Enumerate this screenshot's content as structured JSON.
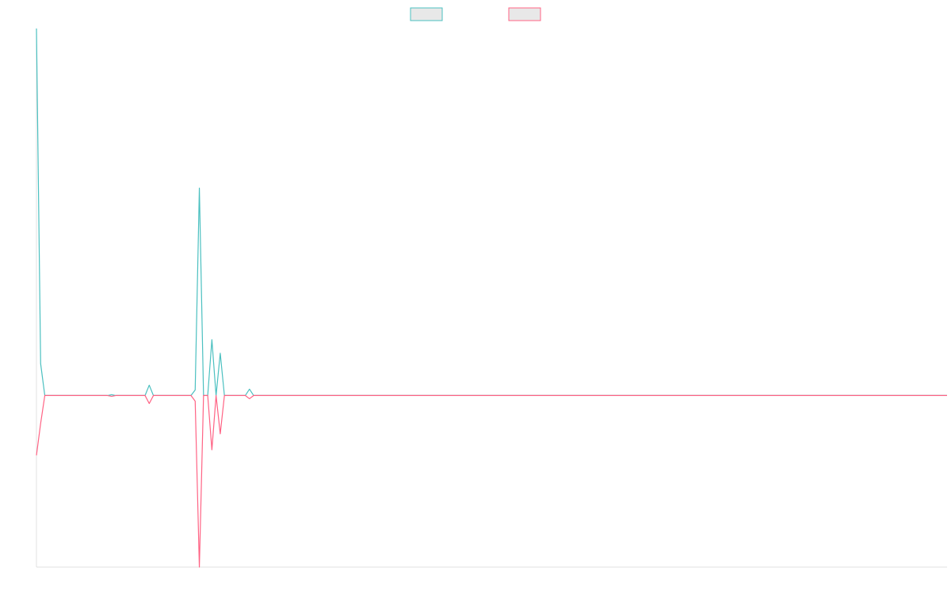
{
  "chart_data": {
    "type": "line",
    "title": "",
    "xlabel": "",
    "ylabel": "",
    "grid": false,
    "legend_placement": "top-center",
    "series": [
      {
        "name": "",
        "color": "#4bc0c0",
        "fill": "#e8e8e8",
        "values": [
          4.6,
          0.4,
          0,
          0,
          0,
          0,
          0,
          0,
          0,
          0,
          0,
          0,
          0,
          0,
          0,
          0,
          0,
          0,
          0.01,
          0,
          0,
          0,
          0,
          0,
          0,
          0,
          0,
          0.13,
          0,
          0,
          0,
          0,
          0,
          0,
          0,
          0,
          0,
          0,
          0.07,
          2.6,
          0,
          0,
          0.7,
          0,
          0.53,
          0,
          0,
          0,
          0,
          0,
          0,
          0.08,
          0,
          0,
          0,
          0,
          0,
          0,
          0,
          0,
          0,
          0,
          0,
          0,
          0,
          0,
          0,
          0,
          0,
          0,
          0,
          0,
          0,
          0,
          0,
          0,
          0,
          0,
          0,
          0,
          0,
          0,
          0,
          0,
          0,
          0,
          0,
          0,
          0,
          0,
          0,
          0,
          0,
          0,
          0,
          0,
          0,
          0,
          0,
          0,
          0,
          0,
          0,
          0,
          0,
          0,
          0,
          0,
          0,
          0,
          0,
          0,
          0,
          0,
          0,
          0,
          0,
          0,
          0,
          0,
          0,
          0,
          0,
          0,
          0,
          0,
          0,
          0,
          0,
          0,
          0,
          0,
          0,
          0,
          0,
          0,
          0,
          0,
          0,
          0,
          0,
          0,
          0,
          0,
          0,
          0,
          0,
          0,
          0,
          0,
          0,
          0,
          0,
          0,
          0,
          0,
          0,
          0,
          0,
          0,
          0,
          0,
          0,
          0,
          0,
          0,
          0,
          0,
          0,
          0,
          0,
          0,
          0,
          0,
          0,
          0,
          0,
          0,
          0,
          0,
          0,
          0,
          0,
          0,
          0,
          0,
          0,
          0,
          0,
          0,
          0,
          0,
          0,
          0,
          0,
          0,
          0,
          0,
          0,
          0,
          0,
          0,
          0,
          0,
          0,
          0,
          0,
          0,
          0,
          0,
          0,
          0,
          0,
          0,
          0,
          0,
          0,
          0,
          0
        ]
      },
      {
        "name": "",
        "color": "#ff6384",
        "fill": "#e8e8e8",
        "values": [
          -0.75,
          -0.35,
          0,
          0,
          0,
          0,
          0,
          0,
          0,
          0,
          0,
          0,
          0,
          0,
          0,
          0,
          0,
          0,
          -0.01,
          0,
          0,
          0,
          0,
          0,
          0,
          0,
          0,
          -0.1,
          0,
          0,
          0,
          0,
          0,
          0,
          0,
          0,
          0,
          0,
          -0.07,
          -2.15,
          0,
          0,
          -0.68,
          0,
          -0.48,
          0,
          0,
          0,
          0,
          0,
          0,
          -0.04,
          0,
          0,
          0,
          0,
          0,
          0,
          0,
          0,
          0,
          0,
          0,
          0,
          0,
          0,
          0,
          0,
          0,
          0,
          0,
          0,
          0,
          0,
          0,
          0,
          0,
          0,
          0,
          0,
          0,
          0,
          0,
          0,
          0,
          0,
          0,
          0,
          0,
          0,
          0,
          0,
          0,
          0,
          0,
          0,
          0,
          0,
          0,
          0,
          0,
          0,
          0,
          0,
          0,
          0,
          0,
          0,
          0,
          0,
          0,
          0,
          0,
          0,
          0,
          0,
          0,
          0,
          0,
          0,
          0,
          0,
          0,
          0,
          0,
          0,
          0,
          0,
          0,
          0,
          0,
          0,
          0,
          0,
          0,
          0,
          0,
          0,
          0,
          0,
          0,
          0,
          0,
          0,
          0,
          0,
          0,
          0,
          0,
          0,
          0,
          0,
          0,
          0,
          0,
          0,
          0,
          0,
          0,
          0,
          0,
          0,
          0,
          0,
          0,
          0,
          0,
          0,
          0,
          0,
          0,
          0,
          0,
          0,
          0,
          0,
          0,
          0,
          0,
          0,
          0,
          0,
          0,
          0,
          0,
          0,
          0,
          0,
          0,
          0,
          0,
          0,
          0,
          0,
          0,
          0,
          0,
          0,
          0,
          0,
          0,
          0,
          0,
          0,
          0,
          0,
          0,
          0,
          0,
          0,
          0,
          0,
          0,
          0,
          0,
          0,
          0,
          0,
          0
        ]
      }
    ],
    "ylim": [
      -2.15,
      4.6
    ]
  }
}
